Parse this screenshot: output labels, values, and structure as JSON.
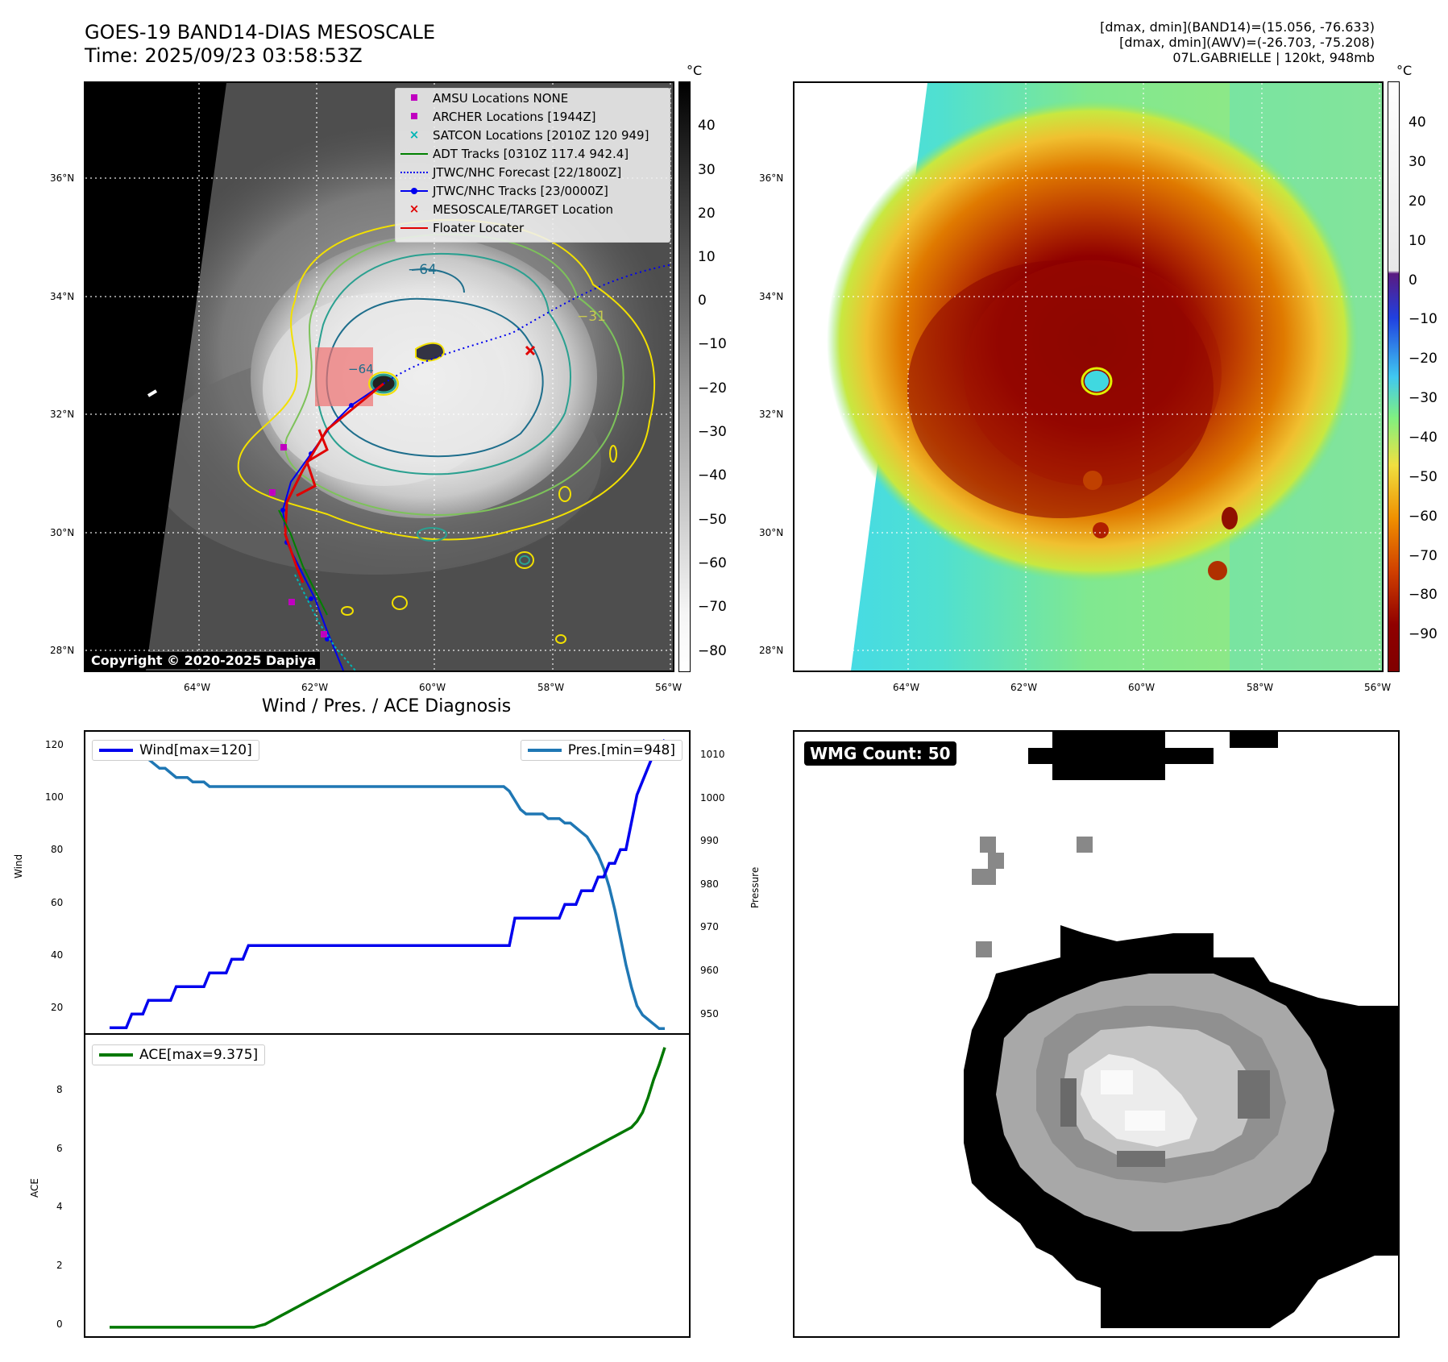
{
  "header": {
    "title_line1": "GOES-19 BAND14-DIAS MESOSCALE",
    "title_line2": "Time: 2025/09/23 03:58:53Z",
    "info_line1": "[dmax, dmin](BAND14)=(15.056, -76.633)",
    "info_line2": "[dmax, dmin](AWV)=(-26.703, -75.208)",
    "info_line3": "07L.GABRIELLE | 120kt, 948mb"
  },
  "map_axes": {
    "lat_labels": [
      "36°N",
      "34°N",
      "32°N",
      "30°N",
      "28°N"
    ],
    "lon_labels": [
      "64°W",
      "62°W",
      "60°W",
      "58°W",
      "56°W"
    ]
  },
  "ir_panel": {
    "colorbar_unit": "°C",
    "colorbar_ticks": [
      "40",
      "30",
      "20",
      "10",
      "0",
      "−10",
      "−20",
      "−30",
      "−40",
      "−50",
      "−60",
      "−70",
      "−80"
    ],
    "contour_labels": [
      "−64",
      "−31",
      "−64"
    ],
    "copyright": "Copyright © 2020-2025 Dapiya",
    "legend": [
      {
        "label": "AMSU Locations NONE",
        "symbol": "square",
        "color": "#c000c0"
      },
      {
        "label": "ARCHER Locations [1944Z]",
        "symbol": "square",
        "color": "#c000c0"
      },
      {
        "label": "SATCON Locations [2010Z 120 949]",
        "symbol": "x",
        "color": "#00b5b5"
      },
      {
        "label": "ADT Tracks [0310Z 117.4 942.4]",
        "symbol": "line",
        "color": "#008000"
      },
      {
        "label": "JTWC/NHC Forecast [22/1800Z]",
        "symbol": "dotted",
        "color": "#0000ff"
      },
      {
        "label": "JTWC/NHC Tracks [23/0000Z]",
        "symbol": "line-dot",
        "color": "#0000ff"
      },
      {
        "label": "MESOSCALE/TARGET Location",
        "symbol": "x",
        "color": "#e00000"
      },
      {
        "label": "Floater Locater",
        "symbol": "line",
        "color": "#e00000"
      }
    ]
  },
  "awv_panel": {
    "colorbar_unit": "°C",
    "colorbar_ticks": [
      "40",
      "30",
      "20",
      "10",
      "0",
      "−10",
      "−20",
      "−30",
      "−40",
      "−50",
      "−60",
      "−70",
      "−80",
      "−90"
    ]
  },
  "diagnosis": {
    "title": "Wind / Pres. / ACE Diagnosis",
    "wind_axis_label": "Wind",
    "pressure_axis_label": "Pressure",
    "ace_axis_label": "ACE",
    "wind_legend": "Wind[max=120]",
    "pres_legend": "Pres.[min=948]",
    "ace_legend": "ACE[max=9.375]",
    "wind_ticks": [
      "120",
      "100",
      "80",
      "60",
      "40",
      "20"
    ],
    "pres_ticks": [
      "1010",
      "1000",
      "990",
      "980",
      "970",
      "960",
      "950"
    ],
    "ace_ticks": [
      "8",
      "6",
      "4",
      "2",
      "0"
    ]
  },
  "wmg_panel": {
    "label": "WMG Count: 50"
  },
  "chart_data": [
    {
      "type": "line",
      "title": "Wind / Pres. / ACE Diagnosis",
      "x": [
        0,
        1,
        2,
        3,
        4,
        5,
        6,
        7,
        8,
        9,
        10,
        11,
        12,
        13,
        14,
        15,
        16,
        17,
        18,
        19,
        20,
        21,
        22,
        23,
        24,
        25,
        26,
        27,
        28,
        29,
        30,
        31,
        32,
        33,
        34,
        35,
        36,
        37,
        38,
        39,
        40,
        41,
        42,
        43,
        44,
        45,
        46,
        47,
        48,
        49,
        50,
        51,
        52,
        53,
        54,
        55,
        56,
        57,
        58,
        59,
        60,
        61,
        62,
        63,
        64,
        65,
        66,
        67,
        68,
        69,
        70,
        71,
        72,
        73,
        74,
        75,
        76,
        77,
        78,
        79,
        80,
        81,
        82,
        83,
        84,
        85,
        86,
        87,
        88,
        89,
        90,
        91,
        92,
        93,
        94,
        95,
        96,
        97,
        98,
        99,
        100
      ],
      "series": [
        {
          "name": "Wind[max=120]",
          "axis": "left",
          "ylabel": "Wind",
          "ylim": [
            13,
            123
          ],
          "color": "#0000ee",
          "values": [
            15,
            15,
            15,
            15,
            20,
            20,
            20,
            25,
            25,
            25,
            25,
            25,
            30,
            30,
            30,
            30,
            30,
            30,
            35,
            35,
            35,
            35,
            40,
            40,
            40,
            45,
            45,
            45,
            45,
            45,
            45,
            45,
            45,
            45,
            45,
            45,
            45,
            45,
            45,
            45,
            45,
            45,
            45,
            45,
            45,
            45,
            45,
            45,
            45,
            45,
            45,
            45,
            45,
            45,
            45,
            45,
            45,
            45,
            45,
            45,
            45,
            45,
            45,
            45,
            45,
            45,
            45,
            45,
            45,
            45,
            45,
            45,
            45,
            55,
            55,
            55,
            55,
            55,
            55,
            55,
            55,
            55,
            60,
            60,
            60,
            65,
            65,
            65,
            70,
            70,
            75,
            75,
            80,
            80,
            90,
            100,
            105,
            110,
            115,
            118,
            120
          ]
        },
        {
          "name": "Pres.[min=948]",
          "axis": "right",
          "ylabel": "Pressure",
          "ylim": [
            947,
            1013
          ],
          "color": "#1f77b4",
          "values": [
            1010,
            1010,
            1010,
            1009,
            1008,
            1008,
            1007,
            1007,
            1006,
            1005,
            1005,
            1004,
            1003,
            1003,
            1003,
            1002,
            1002,
            1002,
            1001,
            1001,
            1001,
            1001,
            1001,
            1001,
            1001,
            1001,
            1001,
            1001,
            1001,
            1001,
            1001,
            1001,
            1001,
            1001,
            1001,
            1001,
            1001,
            1001,
            1001,
            1001,
            1001,
            1001,
            1001,
            1001,
            1001,
            1001,
            1001,
            1001,
            1001,
            1001,
            1001,
            1001,
            1001,
            1001,
            1001,
            1001,
            1001,
            1001,
            1001,
            1001,
            1001,
            1001,
            1001,
            1001,
            1001,
            1001,
            1001,
            1001,
            1001,
            1001,
            1001,
            1001,
            1000,
            998,
            996,
            995,
            995,
            995,
            995,
            994,
            994,
            994,
            993,
            993,
            992,
            991,
            990,
            988,
            986,
            983,
            979,
            974,
            968,
            962,
            957,
            953,
            951,
            950,
            949,
            948,
            948
          ]
        }
      ]
    },
    {
      "type": "line",
      "ylabel": "ACE",
      "ylim": [
        -0.3,
        9.8
      ],
      "series": [
        {
          "name": "ACE[max=9.375]",
          "color": "#007800",
          "values": [
            0,
            0,
            0,
            0,
            0,
            0,
            0,
            0,
            0,
            0,
            0,
            0,
            0,
            0,
            0,
            0,
            0,
            0,
            0,
            0,
            0,
            0,
            0,
            0,
            0,
            0,
            0,
            0.05,
            0.1,
            0.2,
            0.3,
            0.4,
            0.5,
            0.6,
            0.7,
            0.8,
            0.9,
            1.0,
            1.1,
            1.2,
            1.3,
            1.4,
            1.5,
            1.6,
            1.7,
            1.8,
            1.9,
            2.0,
            2.1,
            2.2,
            2.3,
            2.4,
            2.5,
            2.6,
            2.7,
            2.8,
            2.9,
            3.0,
            3.1,
            3.2,
            3.3,
            3.4,
            3.5,
            3.6,
            3.7,
            3.8,
            3.9,
            4.0,
            4.1,
            4.2,
            4.3,
            4.4,
            4.5,
            4.6,
            4.7,
            4.8,
            4.9,
            5.0,
            5.1,
            5.2,
            5.3,
            5.4,
            5.5,
            5.6,
            5.7,
            5.8,
            5.9,
            6.0,
            6.1,
            6.2,
            6.3,
            6.4,
            6.5,
            6.6,
            6.7,
            6.9,
            7.2,
            7.7,
            8.3,
            8.8,
            9.375
          ]
        }
      ]
    }
  ]
}
